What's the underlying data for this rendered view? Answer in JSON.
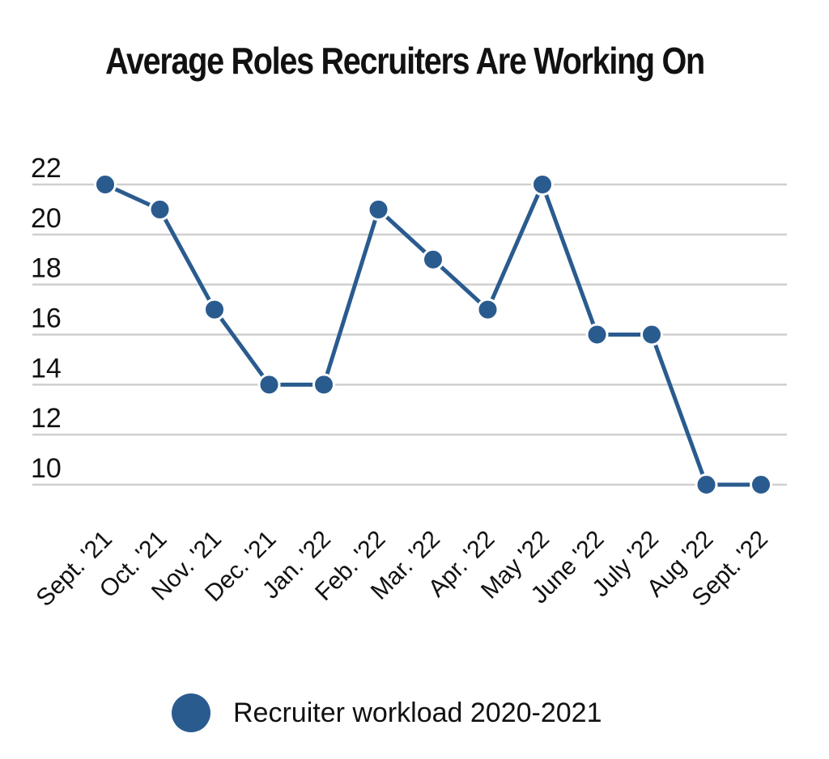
{
  "chart_data": {
    "type": "line",
    "title": "Average Roles Recruiters Are Working On",
    "xlabel": "",
    "ylabel": "",
    "categories": [
      "Sept. '21",
      "Oct. '21",
      "Nov. '21",
      "Dec. '21",
      "Jan. '22",
      "Feb. '22",
      "Mar. '22",
      "Apr. '22",
      "May '22",
      "June '22",
      "July '22",
      "Aug '22",
      "Sept. '22"
    ],
    "series": [
      {
        "name": "Recruiter workload 2020-2021",
        "values": [
          22,
          21,
          17,
          14,
          14,
          21,
          19,
          17,
          22,
          16,
          16,
          10,
          10
        ],
        "color": "#2a5b8f"
      }
    ],
    "ylim": [
      10,
      22
    ],
    "yticks": [
      10,
      12,
      14,
      16,
      18,
      20,
      22
    ],
    "grid": true,
    "legend": "bottom"
  }
}
